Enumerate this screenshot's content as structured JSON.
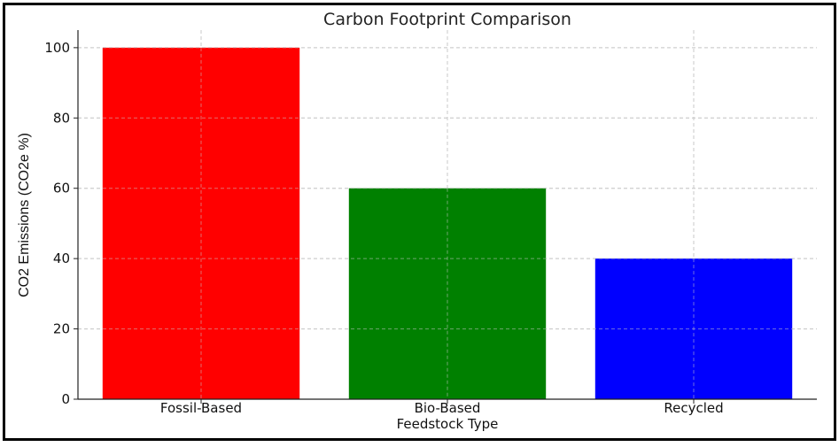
{
  "chart_data": {
    "type": "bar",
    "title": "Carbon Footprint Comparison",
    "xlabel": "Feedstock Type",
    "ylabel": "CO2 Emissions (CO2e %)",
    "categories": [
      "Fossil-Based",
      "Bio-Based",
      "Recycled"
    ],
    "values": [
      100,
      60,
      40
    ],
    "colors": [
      "#ff0000",
      "#008000",
      "#0000ff"
    ],
    "ylim": [
      0,
      105
    ],
    "yticks": [
      0,
      20,
      40,
      60,
      80,
      100
    ],
    "grid": true
  }
}
